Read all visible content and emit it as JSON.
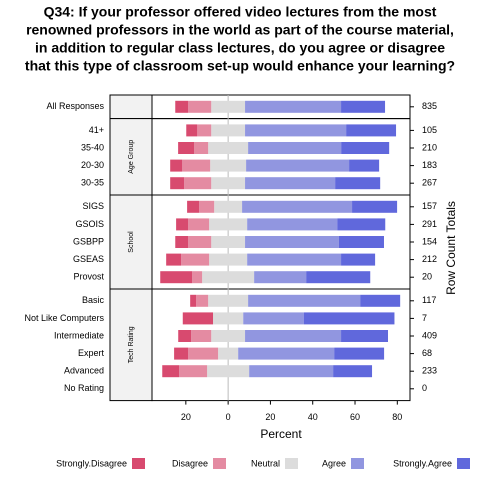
{
  "chart_data": {
    "type": "likert",
    "title": [
      "Q34: If your professor offered video lectures from the most",
      "renowned professors in the world as part of the course material,",
      "in addition to regular class lectures, do you agree or disagree",
      "that this type of classroom set-up would enhance your learning?"
    ],
    "xlabel": "Percent",
    "right_label": "Row Count Totals",
    "categories": [
      "All Responses",
      "41+",
      "35-40",
      "20-30",
      "30-35",
      "SIGS",
      "GSOIS",
      "GSBPP",
      "GSEAS",
      "Provost",
      "Basic",
      "Not Like Computers",
      "Intermediate",
      "Expert",
      "Advanced",
      "No Rating"
    ],
    "category_panels": [
      null,
      "Age Group",
      "Age Group",
      "Age Group",
      "Age Group",
      "School",
      "School",
      "School",
      "School",
      "School",
      "Tech Rating",
      "Tech Rating",
      "Tech Rating",
      "Tech Rating",
      "Tech Rating",
      "Tech Rating"
    ],
    "row_totals": [
      835,
      105,
      210,
      183,
      267,
      157,
      291,
      154,
      212,
      20,
      117,
      7,
      409,
      68,
      233,
      0
    ],
    "series": [
      {
        "name": "Strongly.Disagree",
        "color": "#d84a6f",
        "values": [
          6.1,
          5.2,
          7.6,
          5.7,
          6.6,
          5.7,
          5.7,
          6.1,
          7.1,
          15.1,
          2.8,
          14.3,
          6.1,
          6.6,
          8.0,
          0
        ]
      },
      {
        "name": "Disagree",
        "color": "#e48ba2",
        "values": [
          10.9,
          6.6,
          6.6,
          13.2,
          12.8,
          7.1,
          9.9,
          10.9,
          13.2,
          4.7,
          5.7,
          0,
          9.5,
          14.2,
          13.2,
          0
        ]
      },
      {
        "name": "Neutral",
        "color": "#dcdcdc",
        "values": [
          16.0,
          16.0,
          18.9,
          17.0,
          16.0,
          13.2,
          18.0,
          16.0,
          18.0,
          24.6,
          18.9,
          14.3,
          16.0,
          9.5,
          19.9,
          0
        ]
      },
      {
        "name": "Agree",
        "color": "#9196e0",
        "values": [
          45.4,
          47.8,
          44.0,
          48.7,
          42.6,
          52.0,
          42.6,
          44.4,
          44.4,
          24.6,
          53.0,
          28.6,
          45.4,
          45.4,
          39.7,
          0
        ]
      },
      {
        "name": "Strongly.Agree",
        "color": "#6068dc",
        "values": [
          20.8,
          23.6,
          22.7,
          14.2,
          21.3,
          21.3,
          22.7,
          21.3,
          16.1,
          30.3,
          18.9,
          42.9,
          22.2,
          23.6,
          18.4,
          0
        ]
      }
    ],
    "xlim": [
      -36,
      86
    ],
    "xticks": [
      {
        "value": -20,
        "label": "20"
      },
      0,
      20,
      40,
      60,
      80
    ]
  }
}
